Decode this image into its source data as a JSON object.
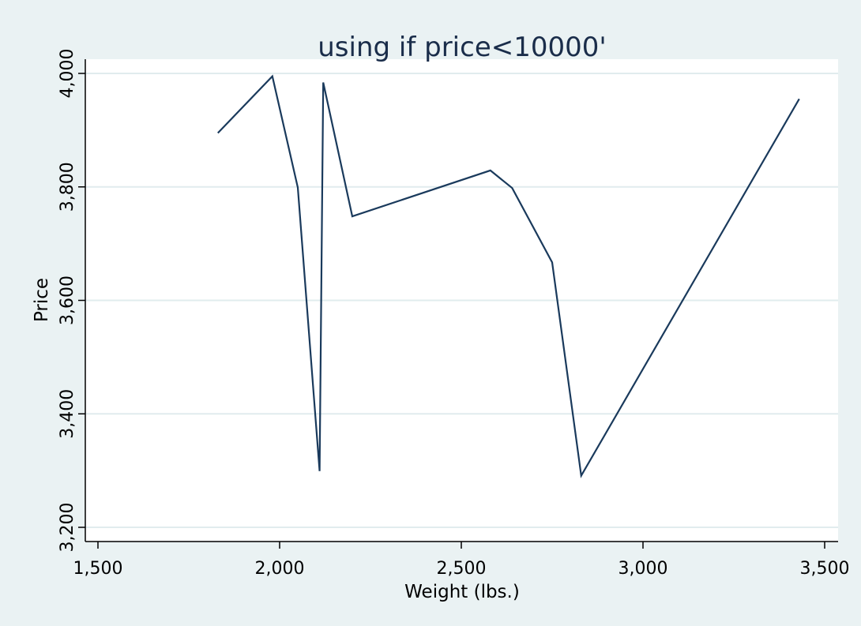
{
  "chart_data": {
    "type": "line",
    "title": "using if price<10000'",
    "xlabel": "Weight (lbs.)",
    "ylabel": "Price",
    "xlim": [
      1500,
      3500
    ],
    "ylim": [
      3200,
      4000
    ],
    "x_ticks": [
      1500,
      2000,
      2500,
      3000,
      3500
    ],
    "x_tick_labels": [
      "1,500",
      "2,000",
      "2,500",
      "3,000",
      "3,500"
    ],
    "y_ticks": [
      3200,
      3400,
      3600,
      3800,
      4000
    ],
    "y_tick_labels": [
      "3,200",
      "3,400",
      "3,600",
      "3,800",
      "4,000"
    ],
    "grid": true,
    "colors": {
      "line": "#1a3a5c",
      "background": "#eaf2f3",
      "plot_background": "#ffffff",
      "grid": "#e1ecee",
      "title": "#1a2d4a"
    },
    "series": [
      {
        "x": [
          1830,
          1980,
          2050,
          2110,
          2120,
          2200,
          2580,
          2640,
          2750,
          2830,
          3430
        ],
        "y": [
          3895,
          3995,
          3799,
          3299,
          3984,
          3748,
          3829,
          3798,
          3667,
          3291,
          3955
        ]
      }
    ]
  }
}
